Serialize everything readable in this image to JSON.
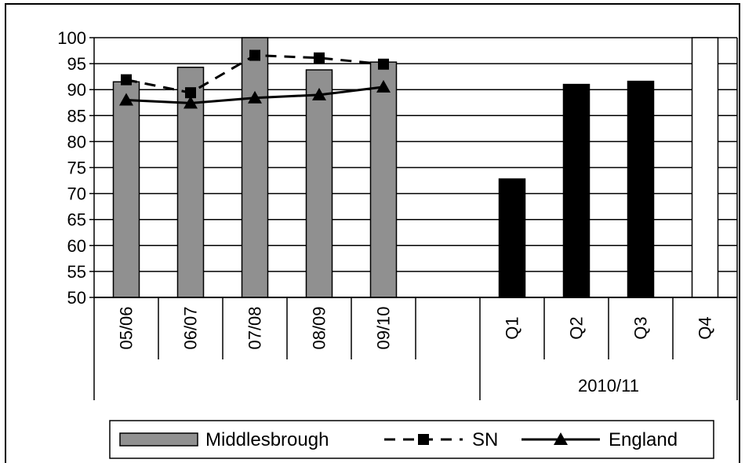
{
  "chart_data": {
    "type": "bar",
    "title": "",
    "xlabel": "",
    "ylabel": "",
    "ylim": [
      50,
      100
    ],
    "yticks": [
      50,
      55,
      60,
      65,
      70,
      75,
      80,
      85,
      90,
      95,
      100
    ],
    "categories": [
      "05/06",
      "06/07",
      "07/08",
      "08/09",
      "09/10",
      "",
      "Q1",
      "Q2",
      "Q3",
      "Q4"
    ],
    "group_labels": [
      {
        "label": "",
        "from": 0,
        "to": 5
      },
      {
        "label": "2010/11",
        "from": 6,
        "to": 9
      }
    ],
    "colors": {
      "middlesbrough_annual": "#909090",
      "middlesbrough_quarterly": "#000000",
      "q4_bar": "#ffffff",
      "sn": "#000000",
      "england": "#000000"
    },
    "series": [
      {
        "name": "Middlesbrough",
        "kind": "bar",
        "values": [
          91.5,
          94.3,
          100,
          93.8,
          95.3,
          null,
          72.8,
          91.0,
          91.6,
          100
        ]
      },
      {
        "name": "SN",
        "kind": "line",
        "style": "dashed",
        "marker": "square",
        "values": [
          91.9,
          89.4,
          96.6,
          96.1,
          94.9,
          null,
          null,
          null,
          null,
          null
        ]
      },
      {
        "name": "England",
        "kind": "line",
        "style": "solid",
        "marker": "triangle",
        "values": [
          88.0,
          87.4,
          88.4,
          89.0,
          90.5,
          null,
          null,
          null,
          null,
          null
        ]
      }
    ],
    "grid": true,
    "legend": "bottom"
  }
}
